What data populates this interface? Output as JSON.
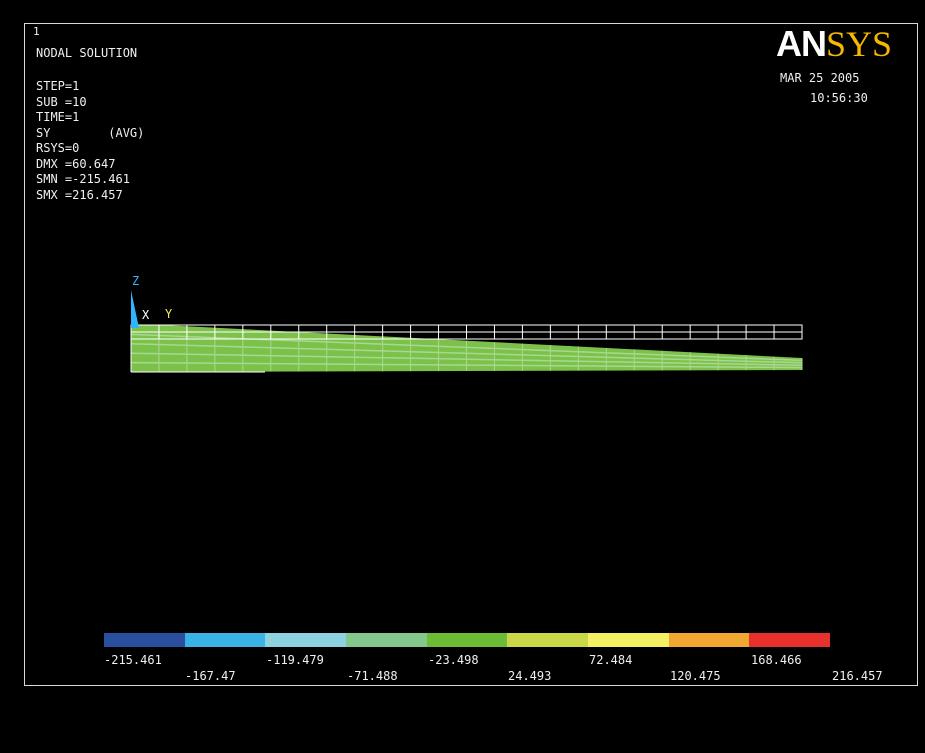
{
  "window_number": "1",
  "logo": {
    "part1": "AN",
    "part2": "SYS"
  },
  "info": {
    "title": "NODAL SOLUTION",
    "lines": [
      "STEP=1",
      "SUB =10",
      "TIME=1",
      "SY        (AVG)",
      "RSYS=0",
      "DMX =60.647",
      "SMN =-215.461",
      "SMX =216.457"
    ]
  },
  "date": "MAR 25 2005",
  "time": "10:56:30",
  "triad": {
    "z_label": "Z",
    "x_label": "X",
    "y_label": "Y"
  },
  "triad_colors": {
    "z": "#2fb4ff",
    "x": "#ffffff",
    "y": "#f4f060"
  },
  "legend": {
    "colors": [
      "#2a4fa0",
      "#3ab4e6",
      "#8cd2e0",
      "#84c88c",
      "#6cbc38",
      "#c8d848",
      "#f4f060",
      "#f0a830",
      "#e8302c"
    ],
    "upper_labels": [
      "-215.461",
      "-119.479",
      "-23.498",
      "72.484",
      "168.466"
    ],
    "lower_labels": [
      "-167.47",
      "-71.488",
      "24.493",
      "120.475",
      "216.457"
    ]
  },
  "model_colors": {
    "mesh_outline": "#ffffff",
    "contour_fill": "#7cc24a",
    "contour_light": "#a8d890"
  },
  "background_color": "#000000"
}
